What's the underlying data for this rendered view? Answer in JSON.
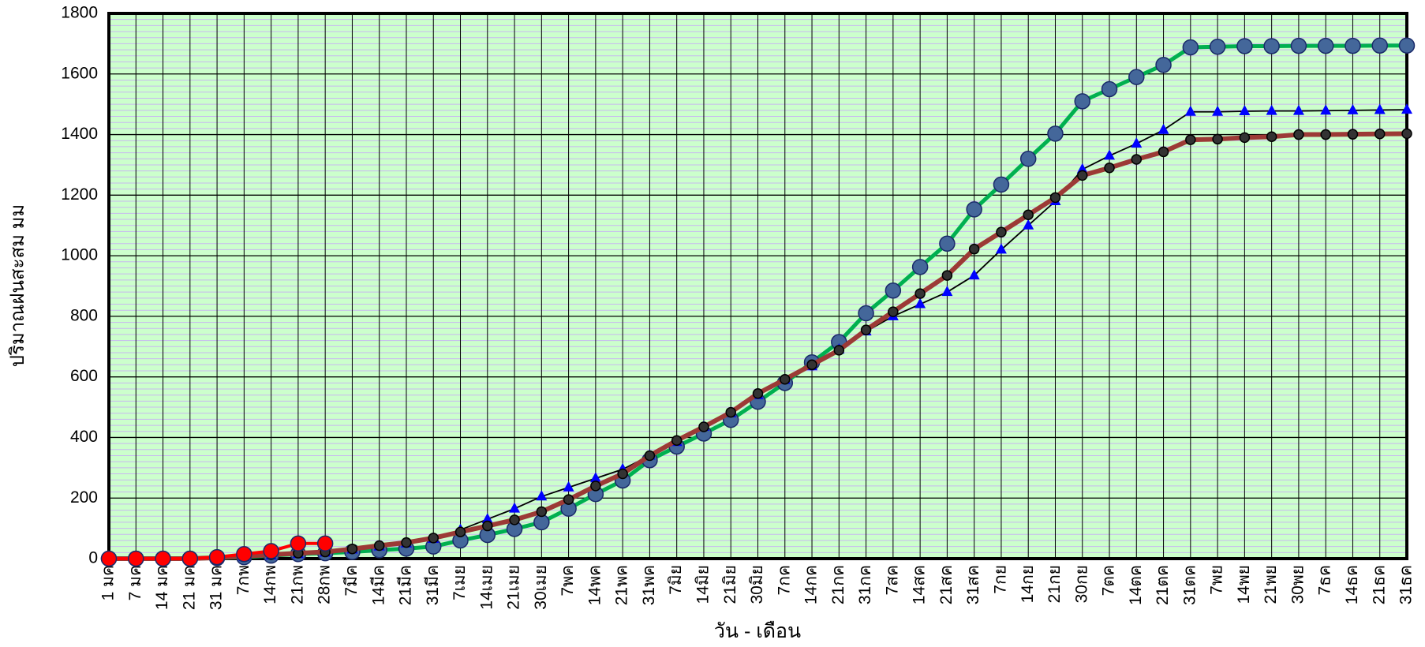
{
  "chart_data": {
    "type": "line",
    "y_label": "ปริมาณฝนสะสม  มม",
    "x_label": "วัน - เดือน",
    "categories": [
      "1 มค",
      "7 มค",
      "14 มค",
      "21 มค",
      "31 มค",
      "7กพ",
      "14กพ",
      "21กพ",
      "28กพ",
      "7มีค",
      "14มีค",
      "21มีค",
      "31มีค",
      "7เมย",
      "14เมย",
      "21เมย",
      "30เมย",
      "7พค",
      "14พค",
      "21พค",
      "31พค",
      "7มิย",
      "14มิย",
      "21มิย",
      "30มิย",
      "7กค",
      "14กค",
      "21กค",
      "31กค",
      "7สค",
      "14สค",
      "21สค",
      "31สค",
      "7กย",
      "14กย",
      "21กย",
      "30กย",
      "7ตค",
      "14ตค",
      "21ตค",
      "31ตค",
      "7พย",
      "14พย",
      "21พย",
      "30พย",
      "7ธค",
      "14ธค",
      "21ธค",
      "31ธค"
    ],
    "series": [
      {
        "color": "#00b050",
        "marker": "circle",
        "marker_color": "#44679a",
        "values": [
          0,
          0,
          0,
          0,
          2,
          5,
          10,
          15,
          18,
          22,
          28,
          33,
          40,
          60,
          78,
          98,
          120,
          165,
          213,
          258,
          325,
          370,
          413,
          458,
          518,
          580,
          648,
          715,
          810,
          885,
          963,
          1040,
          1153,
          1235,
          1320,
          1403,
          1510,
          1550,
          1590,
          1630,
          1688,
          1690,
          1692,
          1692,
          1693,
          1693,
          1693,
          1694,
          1694
        ]
      },
      {
        "color": "#000000",
        "marker": "triangle",
        "marker_color": "#0000ff",
        "values": [
          0,
          0,
          0,
          0,
          2,
          5,
          10,
          15,
          20,
          30,
          40,
          50,
          65,
          95,
          130,
          165,
          205,
          235,
          265,
          295,
          340,
          385,
          435,
          480,
          540,
          590,
          635,
          690,
          750,
          800,
          840,
          880,
          935,
          1020,
          1100,
          1180,
          1285,
          1330,
          1370,
          1415,
          1475,
          1475,
          1477,
          1478,
          1478,
          1479,
          1480,
          1481,
          1482
        ]
      },
      {
        "color": "#9c3a36",
        "marker": "dot",
        "marker_color": "#333333",
        "values": [
          0,
          0,
          0,
          0,
          3,
          8,
          13,
          18,
          22,
          32,
          43,
          53,
          68,
          88,
          108,
          128,
          155,
          195,
          240,
          280,
          340,
          390,
          435,
          483,
          545,
          592,
          640,
          688,
          755,
          815,
          875,
          935,
          1022,
          1078,
          1135,
          1192,
          1265,
          1290,
          1318,
          1343,
          1383,
          1385,
          1390,
          1393,
          1400,
          1400,
          1401,
          1402,
          1403
        ]
      },
      {
        "color": "#ff0000",
        "marker": "circle",
        "marker_color": "#ff0000",
        "values": [
          0,
          0,
          0,
          0,
          5,
          15,
          25,
          50,
          50,
          null,
          null,
          null,
          null,
          null,
          null,
          null,
          null,
          null,
          null,
          null,
          null,
          null,
          null,
          null,
          null,
          null,
          null,
          null,
          null,
          null,
          null,
          null,
          null,
          null,
          null,
          null,
          null,
          null,
          null,
          null,
          null,
          null,
          null,
          null,
          null,
          null,
          null,
          null,
          null
        ]
      }
    ],
    "ylim": [
      0,
      1800
    ],
    "yticks": [
      0,
      200,
      400,
      600,
      800,
      1000,
      1200,
      1400,
      1600,
      1800
    ],
    "grid": true,
    "background": "#ccffcc"
  }
}
